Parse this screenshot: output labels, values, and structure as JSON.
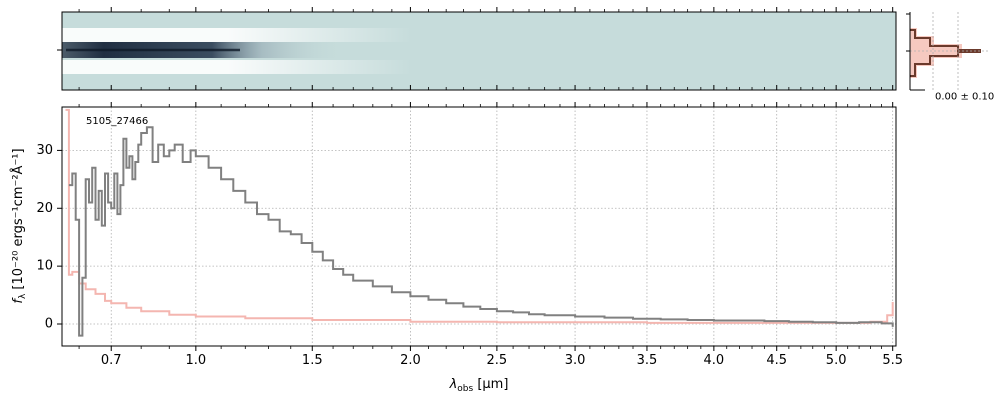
{
  "figure": {
    "object_label": "5105_27466",
    "profile_annotation": "0.00 ± 0.10"
  },
  "colors": {
    "spectrum": "#808080",
    "error": "#f4b6b0",
    "twod_background": "#c6dcdb",
    "twod_trace": "#1b2a3a",
    "profile_line": "#6b3a2c",
    "profile_fill": "#f6c9c0",
    "grid": "#b0b0b0"
  },
  "chart_data": {
    "type": "line",
    "xscale": "sqrt",
    "xlim": [
      0.55,
      5.53
    ],
    "ylim": [
      -3.8,
      37.5
    ],
    "x_tick_labels": [
      "0.7",
      "1.0",
      "1.5",
      "2.0",
      "2.5",
      "3.0",
      "3.5",
      "4.0",
      "4.5",
      "5.0",
      "5.5"
    ],
    "x_ticks": [
      0.7,
      1.0,
      1.5,
      2.0,
      2.5,
      3.0,
      3.5,
      4.0,
      4.5,
      5.0,
      5.5
    ],
    "y_tick_labels": [
      "0",
      "10",
      "20",
      "30"
    ],
    "y_ticks": [
      0,
      10,
      20,
      30
    ],
    "xlabel_main": "λ",
    "xlabel_sub": "obs",
    "xlabel_unit": " [μm]",
    "ylabel_main": "f",
    "ylabel_sub": "λ",
    "ylabel_unit": " [10⁻²⁰ ergs⁻¹cm⁻²Å⁻¹]",
    "grid": true,
    "series": [
      {
        "role": "flux",
        "x": [
          0.57,
          0.58,
          0.59,
          0.6,
          0.61,
          0.62,
          0.63,
          0.64,
          0.65,
          0.66,
          0.67,
          0.68,
          0.69,
          0.7,
          0.71,
          0.72,
          0.73,
          0.74,
          0.75,
          0.76,
          0.77,
          0.78,
          0.79,
          0.8,
          0.82,
          0.84,
          0.86,
          0.88,
          0.9,
          0.92,
          0.95,
          0.98,
          1.0,
          1.05,
          1.1,
          1.15,
          1.2,
          1.25,
          1.3,
          1.35,
          1.4,
          1.45,
          1.5,
          1.55,
          1.6,
          1.65,
          1.7,
          1.8,
          1.9,
          2.0,
          2.1,
          2.2,
          2.3,
          2.4,
          2.5,
          2.6,
          2.7,
          2.8,
          3.0,
          3.2,
          3.4,
          3.6,
          3.8,
          4.0,
          4.2,
          4.4,
          4.6,
          4.8,
          5.0,
          5.2,
          5.4,
          5.5
        ],
        "y": [
          24,
          26,
          18,
          -2,
          8,
          25,
          21,
          27,
          18,
          23,
          17,
          26,
          21,
          20,
          26,
          19,
          24,
          32,
          27,
          29,
          25,
          28,
          31,
          33,
          34,
          28,
          31,
          29,
          30,
          31,
          28,
          30,
          29,
          27,
          25,
          23,
          21,
          19,
          18,
          16,
          15.5,
          14,
          12.5,
          11,
          9.5,
          8.5,
          7.5,
          6.5,
          5.5,
          4.8,
          4.2,
          3.6,
          3.0,
          2.6,
          2.2,
          2.0,
          1.7,
          1.5,
          1.3,
          1.1,
          0.9,
          0.8,
          0.7,
          0.6,
          0.6,
          0.5,
          0.4,
          0.3,
          0.2,
          0.3,
          0.1,
          -0.5
        ]
      },
      {
        "role": "error",
        "x": [
          0.56,
          0.57,
          0.58,
          0.6,
          0.62,
          0.65,
          0.68,
          0.7,
          0.75,
          0.8,
          0.9,
          1.0,
          1.2,
          1.5,
          2.0,
          2.5,
          3.0,
          3.5,
          4.0,
          4.5,
          5.0,
          5.3,
          5.45,
          5.5
        ],
        "y": [
          37,
          8.5,
          9.0,
          7.0,
          6.0,
          5.2,
          4.0,
          3.6,
          2.8,
          2.2,
          1.6,
          1.3,
          1.0,
          0.7,
          0.4,
          0.3,
          0.3,
          0.2,
          0.2,
          0.2,
          0.2,
          0.4,
          1.5,
          3.8
        ]
      }
    ]
  }
}
